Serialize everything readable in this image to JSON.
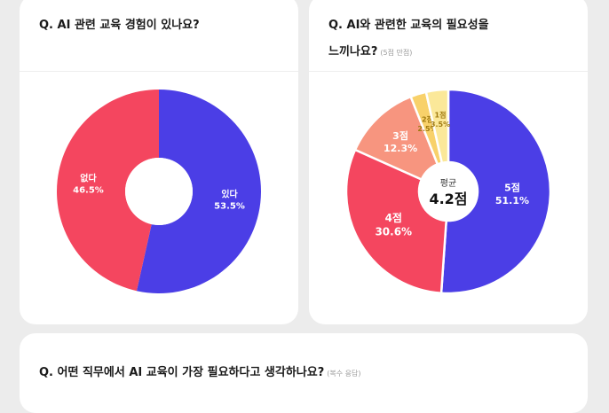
{
  "panels": {
    "left": {
      "question": "Q. AI 관련 교육 경험이 있나요?"
    },
    "right": {
      "question_line1": "Q. AI와 관련한 교육의 필요성을",
      "question_line2": "느끼나요?",
      "note": "(5점 만점)"
    },
    "bottom": {
      "question": "Q. 어떤 직무에서 AI 교육이 가장 필요하다고 생각하나요?",
      "note": "(복수 응답)"
    }
  },
  "chart_data": [
    {
      "type": "pie",
      "categories": [
        "있다",
        "없다"
      ],
      "values": [
        53.5,
        46.5
      ],
      "value_labels": [
        "53.5%",
        "46.5%"
      ],
      "colors": [
        "#4b3ee6",
        "#f4465f"
      ],
      "label_colors": [
        "#ffffff",
        "#ffffff"
      ]
    },
    {
      "type": "pie",
      "categories": [
        "5점",
        "4점",
        "3점",
        "2점",
        "1점"
      ],
      "values": [
        51.1,
        30.6,
        12.3,
        2.5,
        3.5
      ],
      "value_labels": [
        "51.1%",
        "30.6%",
        "12.3%",
        "2.5%",
        "3.5%"
      ],
      "colors": [
        "#4b3ee6",
        "#f4465f",
        "#f7957f",
        "#f8d16a",
        "#fbe899"
      ],
      "label_colors": [
        "#ffffff",
        "#ffffff",
        "#ffffff",
        "#a07a10",
        "#a07a10"
      ],
      "center_label": "평균",
      "center_value": "4.2점"
    }
  ]
}
